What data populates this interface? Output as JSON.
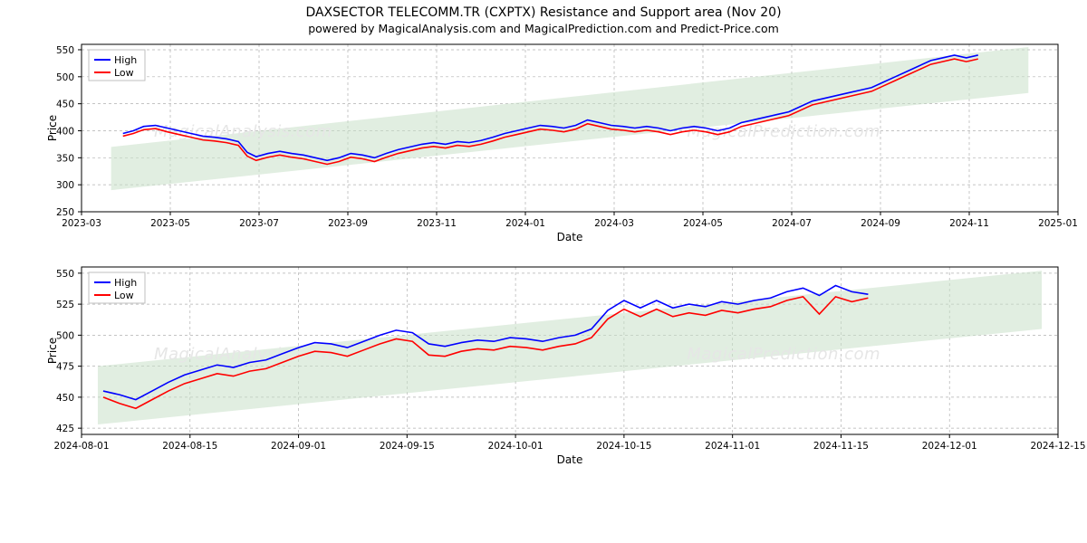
{
  "title": "DAXSECTOR TELECOMM.TR (CXPTX) Resistance and Support area (Nov 20)",
  "subtitle": "powered by MagicalAnalysis.com and MagicalPrediction.com and Predict-Price.com",
  "watermarks": {
    "top_left": "MagicalAnalysis.com",
    "top_right": "MagicalPrediction.com",
    "bottom_left": "MagicalAnalysis.com",
    "bottom_right": "MagicalPrediction.com"
  },
  "legend": {
    "high": "High",
    "low": "Low"
  },
  "colors": {
    "high_line": "#0000ff",
    "low_line": "#ff0000",
    "band_fill": "#c8e0c8",
    "band_fill_opacity": 0.55,
    "grid": "#b0b0b0",
    "border": "#000000",
    "background": "#ffffff"
  },
  "chart_top": {
    "type": "line",
    "xlabel": "Date",
    "ylabel": "Price",
    "ylim": [
      250,
      560
    ],
    "yticks": [
      250,
      300,
      350,
      400,
      450,
      500,
      550
    ],
    "xticks_labels": [
      "2023-03",
      "2023-05",
      "2023-07",
      "2023-09",
      "2023-11",
      "2024-01",
      "2024-03",
      "2024-05",
      "2024-07",
      "2024-09",
      "2024-11",
      "2025-01"
    ],
    "xlim": [
      0,
      660
    ],
    "xticks_pos": [
      0,
      60,
      120,
      180,
      240,
      300,
      360,
      420,
      480,
      540,
      600,
      660
    ],
    "band": {
      "x_start": 20,
      "x_end": 640,
      "y_top_start": 370,
      "y_top_end": 555,
      "y_bot_start": 290,
      "y_bot_end": 470
    },
    "high_series": [
      [
        28,
        395
      ],
      [
        35,
        400
      ],
      [
        42,
        408
      ],
      [
        50,
        410
      ],
      [
        58,
        405
      ],
      [
        66,
        400
      ],
      [
        74,
        395
      ],
      [
        82,
        390
      ],
      [
        90,
        388
      ],
      [
        98,
        385
      ],
      [
        106,
        380
      ],
      [
        112,
        360
      ],
      [
        118,
        352
      ],
      [
        126,
        358
      ],
      [
        134,
        362
      ],
      [
        142,
        358
      ],
      [
        150,
        355
      ],
      [
        158,
        350
      ],
      [
        166,
        345
      ],
      [
        174,
        350
      ],
      [
        182,
        358
      ],
      [
        190,
        355
      ],
      [
        198,
        350
      ],
      [
        206,
        358
      ],
      [
        214,
        365
      ],
      [
        222,
        370
      ],
      [
        230,
        375
      ],
      [
        238,
        378
      ],
      [
        246,
        375
      ],
      [
        254,
        380
      ],
      [
        262,
        378
      ],
      [
        270,
        382
      ],
      [
        278,
        388
      ],
      [
        286,
        395
      ],
      [
        294,
        400
      ],
      [
        302,
        405
      ],
      [
        310,
        410
      ],
      [
        318,
        408
      ],
      [
        326,
        405
      ],
      [
        334,
        410
      ],
      [
        342,
        420
      ],
      [
        350,
        415
      ],
      [
        358,
        410
      ],
      [
        366,
        408
      ],
      [
        374,
        405
      ],
      [
        382,
        408
      ],
      [
        390,
        405
      ],
      [
        398,
        400
      ],
      [
        406,
        405
      ],
      [
        414,
        408
      ],
      [
        422,
        405
      ],
      [
        430,
        400
      ],
      [
        438,
        405
      ],
      [
        446,
        415
      ],
      [
        454,
        420
      ],
      [
        462,
        425
      ],
      [
        470,
        430
      ],
      [
        478,
        435
      ],
      [
        486,
        445
      ],
      [
        494,
        455
      ],
      [
        502,
        460
      ],
      [
        510,
        465
      ],
      [
        518,
        470
      ],
      [
        526,
        475
      ],
      [
        534,
        480
      ],
      [
        542,
        490
      ],
      [
        550,
        500
      ],
      [
        558,
        510
      ],
      [
        566,
        520
      ],
      [
        574,
        530
      ],
      [
        582,
        535
      ],
      [
        590,
        540
      ],
      [
        598,
        535
      ],
      [
        606,
        540
      ]
    ],
    "low_series": [
      [
        28,
        390
      ],
      [
        35,
        395
      ],
      [
        42,
        402
      ],
      [
        50,
        404
      ],
      [
        58,
        398
      ],
      [
        66,
        393
      ],
      [
        74,
        388
      ],
      [
        82,
        383
      ],
      [
        90,
        381
      ],
      [
        98,
        378
      ],
      [
        106,
        373
      ],
      [
        112,
        353
      ],
      [
        118,
        345
      ],
      [
        126,
        351
      ],
      [
        134,
        355
      ],
      [
        142,
        351
      ],
      [
        150,
        348
      ],
      [
        158,
        343
      ],
      [
        166,
        338
      ],
      [
        174,
        343
      ],
      [
        182,
        351
      ],
      [
        190,
        348
      ],
      [
        198,
        343
      ],
      [
        206,
        351
      ],
      [
        214,
        358
      ],
      [
        222,
        363
      ],
      [
        230,
        368
      ],
      [
        238,
        371
      ],
      [
        246,
        368
      ],
      [
        254,
        373
      ],
      [
        262,
        371
      ],
      [
        270,
        375
      ],
      [
        278,
        381
      ],
      [
        286,
        388
      ],
      [
        294,
        393
      ],
      [
        302,
        398
      ],
      [
        310,
        403
      ],
      [
        318,
        401
      ],
      [
        326,
        398
      ],
      [
        334,
        403
      ],
      [
        342,
        413
      ],
      [
        350,
        408
      ],
      [
        358,
        403
      ],
      [
        366,
        401
      ],
      [
        374,
        398
      ],
      [
        382,
        401
      ],
      [
        390,
        398
      ],
      [
        398,
        393
      ],
      [
        406,
        398
      ],
      [
        414,
        401
      ],
      [
        422,
        398
      ],
      [
        430,
        393
      ],
      [
        438,
        398
      ],
      [
        446,
        408
      ],
      [
        454,
        413
      ],
      [
        462,
        418
      ],
      [
        470,
        423
      ],
      [
        478,
        428
      ],
      [
        486,
        438
      ],
      [
        494,
        448
      ],
      [
        502,
        453
      ],
      [
        510,
        458
      ],
      [
        518,
        463
      ],
      [
        526,
        468
      ],
      [
        534,
        473
      ],
      [
        542,
        483
      ],
      [
        550,
        493
      ],
      [
        558,
        503
      ],
      [
        566,
        513
      ],
      [
        574,
        523
      ],
      [
        582,
        528
      ],
      [
        590,
        533
      ],
      [
        598,
        528
      ],
      [
        606,
        533
      ]
    ]
  },
  "chart_bottom": {
    "type": "line",
    "xlabel": "Date",
    "ylabel": "Price",
    "ylim": [
      420,
      555
    ],
    "yticks": [
      425,
      450,
      475,
      500,
      525,
      550
    ],
    "xticks_labels": [
      "2024-08-01",
      "2024-08-15",
      "2024-09-01",
      "2024-09-15",
      "2024-10-01",
      "2024-10-15",
      "2024-11-01",
      "2024-11-15",
      "2024-12-01",
      "2024-12-15"
    ],
    "xlim": [
      0,
      9
    ],
    "xticks_pos": [
      0,
      1,
      2,
      3,
      4,
      5,
      6,
      7,
      8,
      9
    ],
    "band": {
      "x_start": 0.15,
      "x_end": 8.85,
      "y_top_start": 475,
      "y_top_end": 552,
      "y_bot_start": 428,
      "y_bot_end": 505
    },
    "high_series": [
      [
        0.2,
        455
      ],
      [
        0.35,
        452
      ],
      [
        0.5,
        448
      ],
      [
        0.65,
        455
      ],
      [
        0.8,
        462
      ],
      [
        0.95,
        468
      ],
      [
        1.1,
        472
      ],
      [
        1.25,
        476
      ],
      [
        1.4,
        474
      ],
      [
        1.55,
        478
      ],
      [
        1.7,
        480
      ],
      [
        1.85,
        485
      ],
      [
        2.0,
        490
      ],
      [
        2.15,
        494
      ],
      [
        2.3,
        493
      ],
      [
        2.45,
        490
      ],
      [
        2.6,
        495
      ],
      [
        2.75,
        500
      ],
      [
        2.9,
        504
      ],
      [
        3.05,
        502
      ],
      [
        3.2,
        493
      ],
      [
        3.35,
        491
      ],
      [
        3.5,
        494
      ],
      [
        3.65,
        496
      ],
      [
        3.8,
        495
      ],
      [
        3.95,
        498
      ],
      [
        4.1,
        497
      ],
      [
        4.25,
        495
      ],
      [
        4.4,
        498
      ],
      [
        4.55,
        500
      ],
      [
        4.7,
        505
      ],
      [
        4.85,
        520
      ],
      [
        5.0,
        528
      ],
      [
        5.15,
        522
      ],
      [
        5.3,
        528
      ],
      [
        5.45,
        522
      ],
      [
        5.6,
        525
      ],
      [
        5.75,
        523
      ],
      [
        5.9,
        527
      ],
      [
        6.05,
        525
      ],
      [
        6.2,
        528
      ],
      [
        6.35,
        530
      ],
      [
        6.5,
        535
      ],
      [
        6.65,
        538
      ],
      [
        6.8,
        532
      ],
      [
        6.95,
        540
      ],
      [
        7.1,
        535
      ],
      [
        7.25,
        533
      ]
    ],
    "low_series": [
      [
        0.2,
        450
      ],
      [
        0.35,
        445
      ],
      [
        0.5,
        441
      ],
      [
        0.65,
        448
      ],
      [
        0.8,
        455
      ],
      [
        0.95,
        461
      ],
      [
        1.1,
        465
      ],
      [
        1.25,
        469
      ],
      [
        1.4,
        467
      ],
      [
        1.55,
        471
      ],
      [
        1.7,
        473
      ],
      [
        1.85,
        478
      ],
      [
        2.0,
        483
      ],
      [
        2.15,
        487
      ],
      [
        2.3,
        486
      ],
      [
        2.45,
        483
      ],
      [
        2.6,
        488
      ],
      [
        2.75,
        493
      ],
      [
        2.9,
        497
      ],
      [
        3.05,
        495
      ],
      [
        3.2,
        484
      ],
      [
        3.35,
        483
      ],
      [
        3.5,
        487
      ],
      [
        3.65,
        489
      ],
      [
        3.8,
        488
      ],
      [
        3.95,
        491
      ],
      [
        4.1,
        490
      ],
      [
        4.25,
        488
      ],
      [
        4.4,
        491
      ],
      [
        4.55,
        493
      ],
      [
        4.7,
        498
      ],
      [
        4.85,
        513
      ],
      [
        5.0,
        521
      ],
      [
        5.15,
        515
      ],
      [
        5.3,
        521
      ],
      [
        5.45,
        515
      ],
      [
        5.6,
        518
      ],
      [
        5.75,
        516
      ],
      [
        5.9,
        520
      ],
      [
        6.05,
        518
      ],
      [
        6.2,
        521
      ],
      [
        6.35,
        523
      ],
      [
        6.5,
        528
      ],
      [
        6.65,
        531
      ],
      [
        6.8,
        517
      ],
      [
        6.95,
        531
      ],
      [
        7.1,
        527
      ],
      [
        7.25,
        530
      ]
    ]
  }
}
